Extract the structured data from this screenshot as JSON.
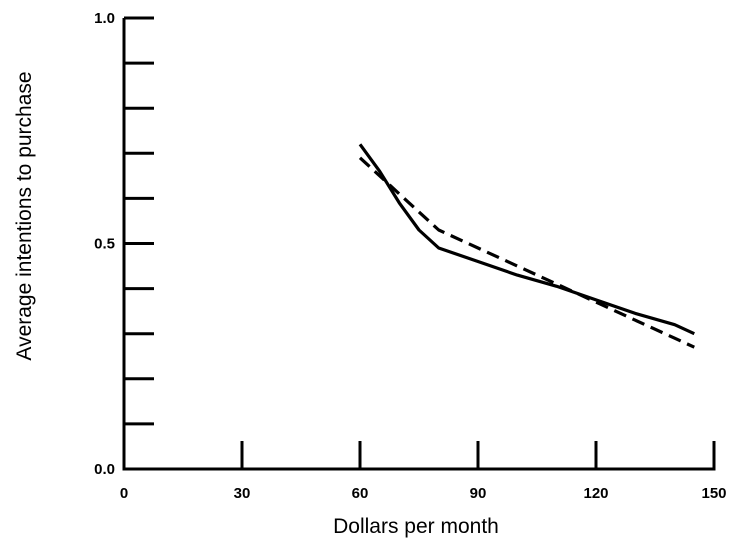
{
  "chart_data": {
    "type": "line",
    "xlabel": "Dollars per month",
    "ylabel": "Average intentions to purchase",
    "xlim": [
      0,
      150
    ],
    "ylim": [
      0.0,
      1.0
    ],
    "x_ticks": [
      0,
      30,
      60,
      90,
      120,
      150
    ],
    "x_tick_labels": [
      "0",
      "30",
      "60",
      "90",
      "120",
      "150"
    ],
    "y_major_ticks": [
      0.0,
      0.5,
      1.0
    ],
    "y_tick_labels": [
      "0.0",
      "0.5",
      "1.0"
    ],
    "y_minor_step": 0.1,
    "grid": false,
    "legend": "none",
    "series": [
      {
        "style": "solid",
        "color": "#000000",
        "points": [
          [
            60,
            0.72
          ],
          [
            65,
            0.66
          ],
          [
            70,
            0.59
          ],
          [
            75,
            0.53
          ],
          [
            80,
            0.49
          ],
          [
            90,
            0.46
          ],
          [
            100,
            0.43
          ],
          [
            110,
            0.405
          ],
          [
            120,
            0.375
          ],
          [
            130,
            0.345
          ],
          [
            140,
            0.32
          ],
          [
            145,
            0.3
          ]
        ]
      },
      {
        "style": "dashed",
        "color": "#000000",
        "points": [
          [
            60,
            0.69
          ],
          [
            70,
            0.61
          ],
          [
            80,
            0.53
          ],
          [
            90,
            0.49
          ],
          [
            100,
            0.45
          ],
          [
            110,
            0.41
          ],
          [
            120,
            0.37
          ],
          [
            130,
            0.33
          ],
          [
            140,
            0.29
          ],
          [
            145,
            0.27
          ]
        ]
      }
    ]
  }
}
